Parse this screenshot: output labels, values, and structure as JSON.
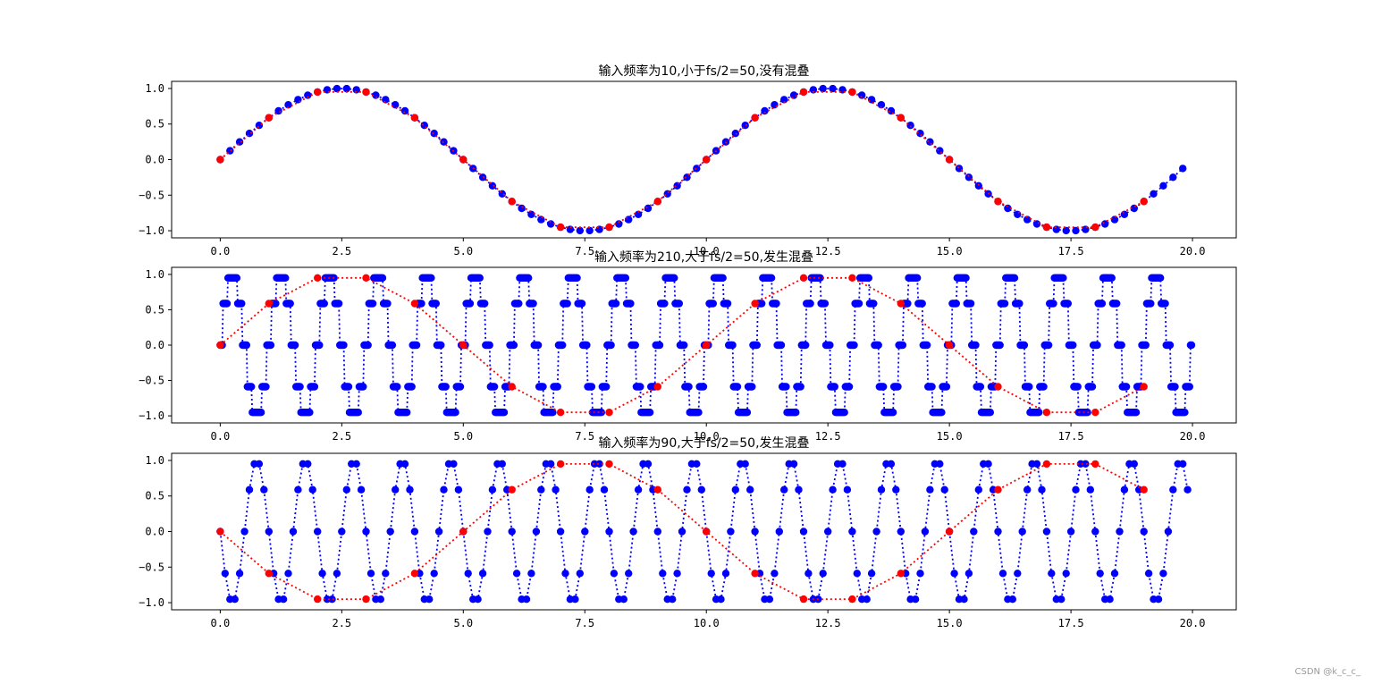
{
  "watermark": "CSDN @k_c_c_",
  "colors": {
    "sampled": "#0000ff",
    "aliased": "#ff0000",
    "axes": "#000000",
    "background": "#ffffff"
  },
  "chart_data": [
    {
      "type": "scatter",
      "title": "输入频率为10,小于fs/2=50,没有混叠",
      "xlabel": "",
      "ylabel": "",
      "xlim": [
        -1.0,
        20.9
      ],
      "ylim": [
        -1.1,
        1.1
      ],
      "xticks": [
        0.0,
        2.5,
        5.0,
        7.5,
        10.0,
        12.5,
        15.0,
        17.5,
        20.0
      ],
      "xtick_labels": [
        "0.0",
        "2.5",
        "5.0",
        "7.5",
        "10.0",
        "12.5",
        "15.0",
        "17.5",
        "20.0"
      ],
      "yticks": [
        -1.0,
        -0.5,
        0.0,
        0.5,
        1.0
      ],
      "ytick_labels": [
        "−1.0",
        "−0.5",
        "0.0",
        "0.5",
        "1.0"
      ],
      "grid": false,
      "series": [
        {
          "role": "signal_samples",
          "color": "#0000ff",
          "style": "dotted-line-with-markers",
          "x": [
            0.0,
            0.2,
            0.4,
            0.6,
            0.8,
            1.0,
            1.2,
            1.4,
            1.6,
            1.8,
            2.0,
            2.2,
            2.4,
            2.6,
            2.8,
            3.0,
            3.2,
            3.4,
            3.6,
            3.8,
            4.0,
            4.2,
            4.4,
            4.6,
            4.8,
            5.0,
            5.2,
            5.4,
            5.6,
            5.8,
            6.0,
            6.2,
            6.4,
            6.6,
            6.8,
            7.0,
            7.2,
            7.4,
            7.6,
            7.8,
            8.0,
            8.2,
            8.4,
            8.6,
            8.8,
            9.0,
            9.2,
            9.4,
            9.6,
            9.8,
            10.0,
            10.2,
            10.4,
            10.6,
            10.8,
            11.0,
            11.2,
            11.4,
            11.6,
            11.8,
            12.0,
            12.2,
            12.4,
            12.6,
            12.8,
            13.0,
            13.2,
            13.4,
            13.6,
            13.8,
            14.0,
            14.2,
            14.4,
            14.6,
            14.8,
            15.0,
            15.2,
            15.4,
            15.6,
            15.8,
            16.0,
            16.2,
            16.4,
            16.6,
            16.8,
            17.0,
            17.2,
            17.4,
            17.6,
            17.8,
            18.0,
            18.2,
            18.4,
            18.6,
            18.8,
            19.0,
            19.2,
            19.4,
            19.6,
            19.8
          ],
          "y": [
            0.0,
            0.125,
            0.249,
            0.368,
            0.482,
            0.588,
            0.685,
            0.771,
            0.844,
            0.905,
            0.951,
            0.982,
            0.998,
            0.998,
            0.982,
            0.951,
            0.905,
            0.844,
            0.771,
            0.685,
            0.588,
            0.482,
            0.368,
            0.249,
            0.125,
            0.0,
            -0.125,
            -0.249,
            -0.368,
            -0.482,
            -0.588,
            -0.685,
            -0.771,
            -0.844,
            -0.905,
            -0.951,
            -0.982,
            -0.998,
            -0.998,
            -0.982,
            -0.951,
            -0.905,
            -0.844,
            -0.771,
            -0.685,
            -0.588,
            -0.482,
            -0.368,
            -0.249,
            -0.125,
            0.0,
            0.125,
            0.249,
            0.368,
            0.482,
            0.588,
            0.685,
            0.771,
            0.844,
            0.905,
            0.951,
            0.982,
            0.998,
            0.998,
            0.982,
            0.951,
            0.905,
            0.844,
            0.771,
            0.685,
            0.588,
            0.482,
            0.368,
            0.249,
            0.125,
            0.0,
            -0.125,
            -0.249,
            -0.368,
            -0.482,
            -0.588,
            -0.685,
            -0.771,
            -0.844,
            -0.905,
            -0.951,
            -0.982,
            -0.998,
            -0.998,
            -0.982,
            -0.951,
            -0.905,
            -0.844,
            -0.771,
            -0.685,
            -0.588,
            -0.482,
            -0.368,
            -0.249,
            -0.125
          ]
        },
        {
          "role": "downsampled",
          "color": "#ff0000",
          "style": "dotted-line-with-markers",
          "x": [
            0,
            1,
            2,
            3,
            4,
            5,
            6,
            7,
            8,
            9,
            10,
            11,
            12,
            13,
            14,
            15,
            16,
            17,
            18,
            19
          ],
          "y": [
            0.0,
            0.588,
            0.951,
            0.951,
            0.588,
            0.0,
            -0.588,
            -0.951,
            -0.951,
            -0.588,
            0.0,
            0.588,
            0.951,
            0.951,
            0.588,
            0.0,
            -0.588,
            -0.951,
            -0.951,
            -0.588
          ]
        }
      ]
    },
    {
      "type": "scatter",
      "title": "输入频率为210,大于fs/2=50,发生混叠",
      "xlabel": "",
      "ylabel": "",
      "xlim": [
        -1.0,
        20.9
      ],
      "ylim": [
        -1.1,
        1.1
      ],
      "xticks": [
        0.0,
        2.5,
        5.0,
        7.5,
        10.0,
        12.5,
        15.0,
        17.5,
        20.0
      ],
      "xtick_labels": [
        "0.0",
        "2.5",
        "5.0",
        "7.5",
        "10.0",
        "12.5",
        "15.0",
        "17.5",
        "20.0"
      ],
      "yticks": [
        -1.0,
        -0.5,
        0.0,
        0.5,
        1.0
      ],
      "ytick_labels": [
        "−1.0",
        "−0.5",
        "0.0",
        "0.5",
        "1.0"
      ],
      "grid": false,
      "series": [
        {
          "role": "signal_samples",
          "color": "#0000ff",
          "style": "dotted-line-with-markers",
          "x_start": 0.0,
          "x_step": 0.02,
          "count": 1000,
          "frequency": 210,
          "sample_rate": 100
        },
        {
          "role": "downsampled",
          "color": "#ff0000",
          "style": "dotted-line-with-markers",
          "x": [
            0,
            1,
            2,
            3,
            4,
            5,
            6,
            7,
            8,
            9,
            10,
            11,
            12,
            13,
            14,
            15,
            16,
            17,
            18,
            19
          ],
          "y": [
            0.0,
            0.588,
            0.951,
            0.951,
            0.588,
            0.0,
            -0.588,
            -0.951,
            -0.951,
            -0.588,
            0.0,
            0.588,
            0.951,
            0.951,
            0.588,
            0.0,
            -0.588,
            -0.951,
            -0.951,
            -0.588
          ]
        }
      ]
    },
    {
      "type": "scatter",
      "title": "输入频率为90,大于fs/2=50,发生混叠",
      "xlabel": "",
      "ylabel": "",
      "xlim": [
        -1.0,
        20.9
      ],
      "ylim": [
        -1.1,
        1.1
      ],
      "xticks": [
        0.0,
        2.5,
        5.0,
        7.5,
        10.0,
        12.5,
        15.0,
        17.5,
        20.0
      ],
      "xtick_labels": [
        "0.0",
        "2.5",
        "5.0",
        "7.5",
        "10.0",
        "12.5",
        "15.0",
        "17.5",
        "20.0"
      ],
      "yticks": [
        -1.0,
        -0.5,
        0.0,
        0.5,
        1.0
      ],
      "ytick_labels": [
        "−1.0",
        "−0.5",
        "0.0",
        "0.5",
        "1.0"
      ],
      "grid": false,
      "series": [
        {
          "role": "signal_samples",
          "color": "#0000ff",
          "style": "dotted-line-with-markers",
          "x_start": 0.0,
          "x_step": 0.1,
          "count": 200,
          "frequency": 90,
          "sample_rate": 100
        },
        {
          "role": "downsampled",
          "color": "#ff0000",
          "style": "dotted-line-with-markers",
          "x": [
            0,
            1,
            2,
            3,
            4,
            5,
            6,
            7,
            8,
            9,
            10,
            11,
            12,
            13,
            14,
            15,
            16,
            17,
            18,
            19
          ],
          "y": [
            0.0,
            -0.588,
            -0.951,
            -0.951,
            -0.588,
            0.0,
            0.588,
            0.951,
            0.951,
            0.588,
            0.0,
            -0.588,
            -0.951,
            -0.951,
            -0.588,
            0.0,
            0.588,
            0.951,
            0.951,
            0.588
          ]
        }
      ]
    }
  ]
}
